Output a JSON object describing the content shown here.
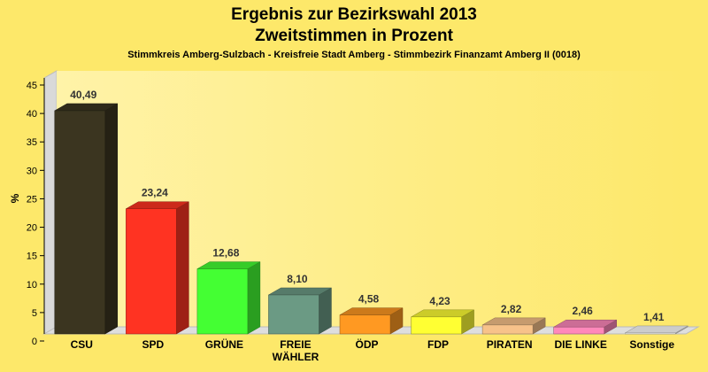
{
  "chart_data": {
    "type": "bar",
    "title": "Ergebnis zur Bezirkswahl 2013",
    "title_line2": "Zweitstimmen in Prozent",
    "subtitle": "Stimmkreis Amberg-Sulzbach - Kreisfreie Stadt Amberg - Stimmbezirk Finanzamt Amberg II (0018)",
    "ylabel": "%",
    "xlabel": "",
    "ylim": [
      0,
      45
    ],
    "yticks": [
      0,
      5,
      10,
      15,
      20,
      25,
      30,
      35,
      40,
      45
    ],
    "grid": false,
    "legend": "none",
    "categories": [
      [
        "CSU"
      ],
      [
        "SPD"
      ],
      [
        "GRÜNE"
      ],
      [
        "FREIE",
        "WÄHLER"
      ],
      [
        "ÖDP"
      ],
      [
        "FDP"
      ],
      [
        "PIRATEN"
      ],
      [
        "DIE LINKE"
      ],
      [
        "Sonstige"
      ]
    ],
    "values": [
      40.49,
      23.24,
      12.68,
      8.1,
      4.58,
      4.23,
      2.82,
      2.46,
      1.41
    ],
    "value_labels": [
      "40,49",
      "23,24",
      "12,68",
      "8,10",
      "4,58",
      "4,23",
      "2,82",
      "2,46",
      "1,41"
    ],
    "colors": [
      "#3b3520",
      "#ff3322",
      "#44ff33",
      "#6b9a84",
      "#ff9922",
      "#ffff33",
      "#f7c28a",
      "#ff88bb",
      "#ffffff"
    ],
    "background_color": "#fde86a"
  }
}
